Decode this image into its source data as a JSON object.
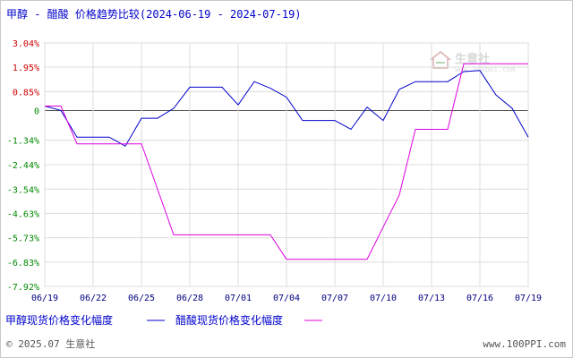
{
  "colors": {
    "plot_border": "#a0a0a0",
    "grid": "#dcdcdc",
    "positive_tick": "#cc0000",
    "negative_tick": "#008800",
    "zero_tick": "#008800",
    "zero_line": "#555555",
    "methanol": "#0000cc",
    "acetic_acid": "#e100e1"
  },
  "header": {
    "title": "甲醇 - 醋酸 价格趋势比较(2024-06-19 - 2024-07-19)"
  },
  "watermark": {
    "brand": "生意社",
    "url": "www.100ppi.com"
  },
  "legend": {
    "methanol": "甲醇现货价格变化幅度",
    "acetic_acid": "醋酸现货价格变化幅度"
  },
  "footer": {
    "copyright": "© 2025.07 生意社",
    "site": "www.100PPI.com"
  },
  "chart_data": {
    "type": "line",
    "title": "甲醇 - 醋酸 价格趋势比较(2024-06-19 - 2024-07-19)",
    "y_unit": "%",
    "ylim": [
      -7.92,
      3.04
    ],
    "yticks": [
      3.04,
      1.95,
      0.85,
      0,
      -1.34,
      -2.44,
      -3.54,
      -4.63,
      -5.73,
      -6.83,
      -7.92
    ],
    "ytick_labels": [
      "3.04%",
      "1.95%",
      "0.85%",
      "0",
      "-1.34%",
      "-2.44%",
      "-3.54%",
      "-4.63%",
      "-5.73%",
      "-6.83%",
      "-7.92%"
    ],
    "x": [
      "06/19",
      "06/20",
      "06/21",
      "06/22",
      "06/23",
      "06/24",
      "06/25",
      "06/26",
      "06/27",
      "06/28",
      "06/29",
      "06/30",
      "07/01",
      "07/02",
      "07/03",
      "07/04",
      "07/05",
      "07/06",
      "07/07",
      "07/08",
      "07/09",
      "07/10",
      "07/11",
      "07/12",
      "07/13",
      "07/14",
      "07/15",
      "07/16",
      "07/17",
      "07/18",
      "07/19"
    ],
    "xtick_labels": [
      "06/19",
      "06/22",
      "06/25",
      "06/28",
      "07/01",
      "07/04",
      "07/07",
      "07/10",
      "07/13",
      "07/16",
      "07/19"
    ],
    "grid": true,
    "legend_position": "bottom-left",
    "series": [
      {
        "name": "甲醇现货价格变化幅度",
        "color_key": "methanol",
        "values": [
          0.2,
          0.0,
          -1.2,
          -1.2,
          -1.2,
          -1.6,
          -0.35,
          -0.35,
          0.1,
          1.05,
          1.05,
          1.05,
          0.25,
          1.3,
          1.0,
          0.6,
          -0.45,
          -0.45,
          -0.45,
          -0.85,
          0.15,
          -0.45,
          0.95,
          1.3,
          1.3,
          1.3,
          1.75,
          1.8,
          0.7,
          0.1,
          -1.2
        ]
      },
      {
        "name": "醋酸现货价格变化幅度",
        "color_key": "acetic_acid",
        "values": [
          0.2,
          0.2,
          -1.5,
          -1.5,
          -1.5,
          -1.5,
          -1.5,
          -3.55,
          -5.6,
          -5.6,
          -5.6,
          -5.6,
          -5.6,
          -5.6,
          -5.6,
          -6.7,
          -6.7,
          -6.7,
          -6.7,
          -6.7,
          -6.7,
          -5.25,
          -3.8,
          -0.85,
          -0.85,
          -0.85,
          2.1,
          2.1,
          2.1,
          2.1,
          2.1
        ]
      }
    ]
  }
}
